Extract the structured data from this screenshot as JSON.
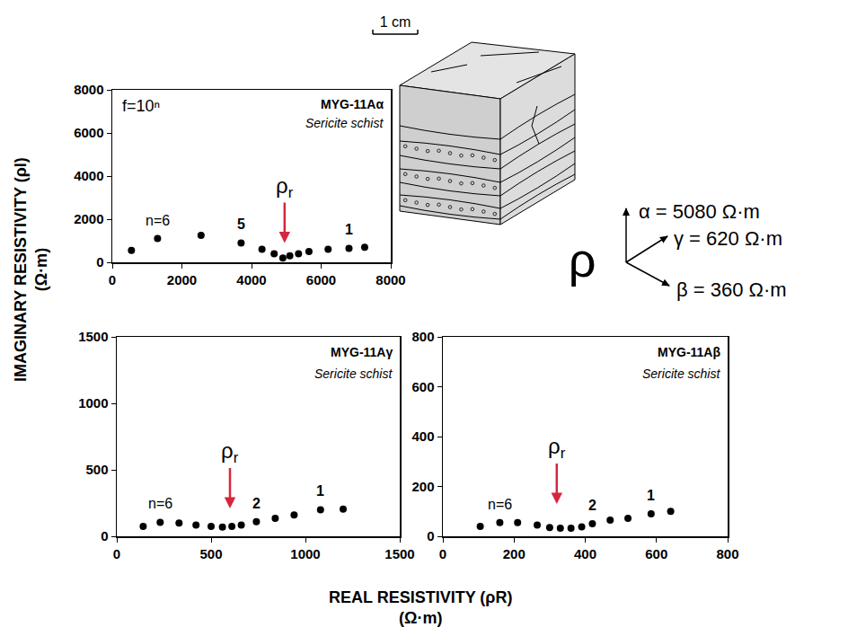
{
  "chart_data": [
    {
      "type": "scatter",
      "title": "MYG-11Aα",
      "subtitle": "Sericite schist",
      "note": "f=10ⁿ",
      "x": [
        550,
        1300,
        2550,
        3700,
        4300,
        4650,
        4900,
        5100,
        5350,
        5650,
        6200,
        6800,
        7250
      ],
      "values": [
        550,
        1100,
        1250,
        900,
        600,
        400,
        200,
        300,
        400,
        500,
        600,
        650,
        700
      ],
      "point_labels": [
        null,
        "n=6",
        null,
        "5",
        null,
        null,
        null,
        null,
        null,
        null,
        null,
        "1",
        null
      ],
      "reference": {
        "text": "ρr",
        "x": 4950,
        "y": 900,
        "color": "#d7263d"
      },
      "color": "#000000",
      "marker": "circle",
      "grid": false,
      "xlim": [
        0,
        8000
      ],
      "xticks": [
        0,
        2000,
        4000,
        6000,
        8000
      ],
      "ylim": [
        0,
        8000
      ],
      "yticks": [
        0,
        2000,
        4000,
        6000,
        8000
      ]
    },
    {
      "type": "scatter",
      "title": "MYG-11Aγ",
      "subtitle": "Sericite schist",
      "x": [
        140,
        230,
        330,
        420,
        500,
        560,
        610,
        660,
        740,
        840,
        940,
        1080,
        1200
      ],
      "values": [
        75,
        105,
        100,
        85,
        75,
        70,
        75,
        85,
        110,
        135,
        160,
        200,
        205
      ],
      "point_labels": [
        null,
        "n=6",
        null,
        null,
        null,
        null,
        null,
        null,
        "2",
        null,
        null,
        "1",
        null
      ],
      "reference": {
        "text": "ρr",
        "x": 600,
        "y": 210,
        "color": "#d7263d"
      },
      "color": "#000000",
      "marker": "circle",
      "grid": false,
      "xlim": [
        0,
        1500
      ],
      "xticks": [
        0,
        500,
        1000,
        1500
      ],
      "ylim": [
        0,
        1500
      ],
      "yticks": [
        0,
        500,
        1000,
        1500
      ]
    },
    {
      "type": "scatter",
      "title": "MYG-11Aβ",
      "subtitle": "Sericite schist",
      "x": [
        105,
        160,
        210,
        265,
        300,
        330,
        360,
        390,
        420,
        470,
        520,
        585,
        640
      ],
      "values": [
        40,
        55,
        55,
        45,
        35,
        32,
        32,
        38,
        50,
        65,
        72,
        90,
        100
      ],
      "point_labels": [
        null,
        "n=6",
        null,
        null,
        null,
        null,
        null,
        null,
        "2",
        null,
        null,
        "1",
        null
      ],
      "reference": {
        "text": "ρr",
        "x": 320,
        "y": 130,
        "color": "#d7263d"
      },
      "color": "#000000",
      "marker": "circle",
      "grid": false,
      "xlim": [
        0,
        800
      ],
      "xticks": [
        0,
        200,
        400,
        600,
        800
      ],
      "ylim": [
        0,
        800
      ],
      "yticks": [
        0,
        200,
        400,
        600,
        800
      ]
    }
  ],
  "shared_axes": {
    "x": [
      "REAL RESISTIVITY (ρR)",
      "(Ω·m)"
    ],
    "y": [
      "IMAGINARY RESISTIVITY (ρI)",
      "(Ω·m)"
    ]
  },
  "diagram": {
    "scale_bar": "1 cm",
    "symbol": "ρ",
    "components": [
      "α = 5080 Ω·m",
      "γ = 620 Ω·m",
      "β = 360 Ω·m"
    ]
  }
}
